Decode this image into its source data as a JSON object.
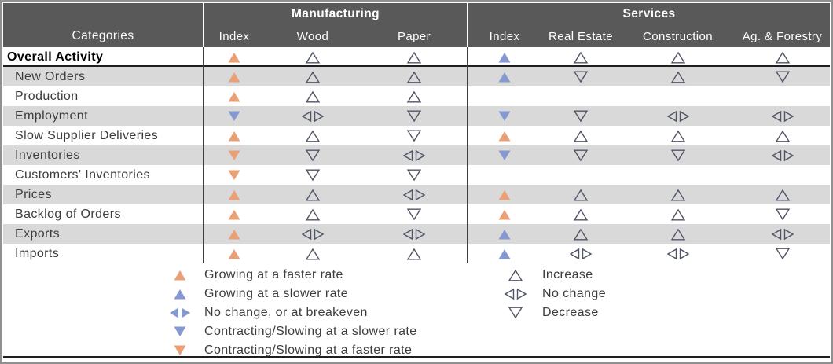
{
  "header": {
    "categories_label": "Categories",
    "groups": [
      {
        "title": "Manufacturing",
        "columns": [
          "Index",
          "Wood",
          "Paper"
        ]
      },
      {
        "title": "Services",
        "columns": [
          "Index",
          "Real Estate",
          "Construction",
          "Ag. & Forestry"
        ]
      }
    ]
  },
  "chart_data": {
    "type": "table",
    "columns": [
      "Categories",
      "Manufacturing Index",
      "Wood",
      "Paper",
      "Services Index",
      "Real Estate",
      "Construction",
      "Ag. & Forestry"
    ],
    "symbol_codes": {
      "up-faster": "Growing at a faster rate (filled orange up triangle)",
      "up-slower": "Growing at a slower rate (filled blue up triangle)",
      "breakeven": "No change, or at breakeven (filled blue left-right triangles)",
      "down-slower": "Contracting/Slowing at a slower rate (filled blue down triangle)",
      "down-faster": "Contracting/Slowing at a faster rate (filled orange down triangle)",
      "inc": "Increase (outline up triangle)",
      "nc": "No change (outline left-right triangles)",
      "dec": "Decrease (outline down triangle)",
      "": "no data"
    },
    "rows": [
      {
        "category": "Overall Activity",
        "bold": true,
        "manufacturing": [
          "up-faster",
          "inc",
          "inc"
        ],
        "services": [
          "up-slower",
          "inc",
          "inc",
          "inc"
        ]
      },
      {
        "category": "New Orders",
        "bold": false,
        "manufacturing": [
          "up-faster",
          "inc",
          "inc"
        ],
        "services": [
          "up-slower",
          "dec",
          "inc",
          "dec"
        ]
      },
      {
        "category": "Production",
        "bold": false,
        "manufacturing": [
          "up-faster",
          "inc",
          "inc"
        ],
        "services": [
          "",
          "",
          "",
          ""
        ]
      },
      {
        "category": "Employment",
        "bold": false,
        "manufacturing": [
          "down-slower",
          "nc",
          "dec"
        ],
        "services": [
          "down-slower",
          "dec",
          "nc",
          "nc"
        ]
      },
      {
        "category": "Slow Supplier Deliveries",
        "bold": false,
        "manufacturing": [
          "up-faster",
          "inc",
          "dec"
        ],
        "services": [
          "up-faster",
          "inc",
          "inc",
          "inc"
        ]
      },
      {
        "category": "Inventories",
        "bold": false,
        "manufacturing": [
          "down-faster",
          "dec",
          "nc"
        ],
        "services": [
          "down-slower",
          "dec",
          "dec",
          "nc"
        ]
      },
      {
        "category": "Customers' Inventories",
        "bold": false,
        "manufacturing": [
          "down-faster",
          "dec",
          "dec"
        ],
        "services": [
          "",
          "",
          "",
          ""
        ]
      },
      {
        "category": "Prices",
        "bold": false,
        "manufacturing": [
          "up-faster",
          "inc",
          "nc"
        ],
        "services": [
          "up-faster",
          "inc",
          "inc",
          "inc"
        ]
      },
      {
        "category": "Backlog of Orders",
        "bold": false,
        "manufacturing": [
          "up-faster",
          "inc",
          "dec"
        ],
        "services": [
          "up-faster",
          "inc",
          "inc",
          "dec"
        ]
      },
      {
        "category": "Exports",
        "bold": false,
        "manufacturing": [
          "up-faster",
          "nc",
          "nc"
        ],
        "services": [
          "up-slower",
          "inc",
          "inc",
          "nc"
        ]
      },
      {
        "category": "Imports",
        "bold": false,
        "manufacturing": [
          "up-faster",
          "inc",
          "inc"
        ],
        "services": [
          "up-slower",
          "nc",
          "nc",
          "dec"
        ]
      }
    ]
  },
  "legend": {
    "filled_items": [
      {
        "symbol": "up-faster",
        "label": "Growing at a faster rate"
      },
      {
        "symbol": "up-slower",
        "label": "Growing at a slower rate"
      },
      {
        "symbol": "breakeven",
        "label": "No change, or at breakeven"
      },
      {
        "symbol": "down-slower",
        "label": "Contracting/Slowing at a slower rate"
      },
      {
        "symbol": "down-faster",
        "label": "Contracting/Slowing at a faster rate"
      }
    ],
    "outline_items": [
      {
        "symbol": "inc",
        "label": "Increase"
      },
      {
        "symbol": "nc",
        "label": "No change"
      },
      {
        "symbol": "dec",
        "label": "Decrease"
      }
    ]
  },
  "colors": {
    "orange": "#E9A077",
    "blue": "#8598D0",
    "outline_stroke": "#4F5565",
    "header_bg": "#595959",
    "header_text": "#FFFFFF",
    "alt_row_bg": "#D9D9D9",
    "divider": "#3F3F3F"
  }
}
